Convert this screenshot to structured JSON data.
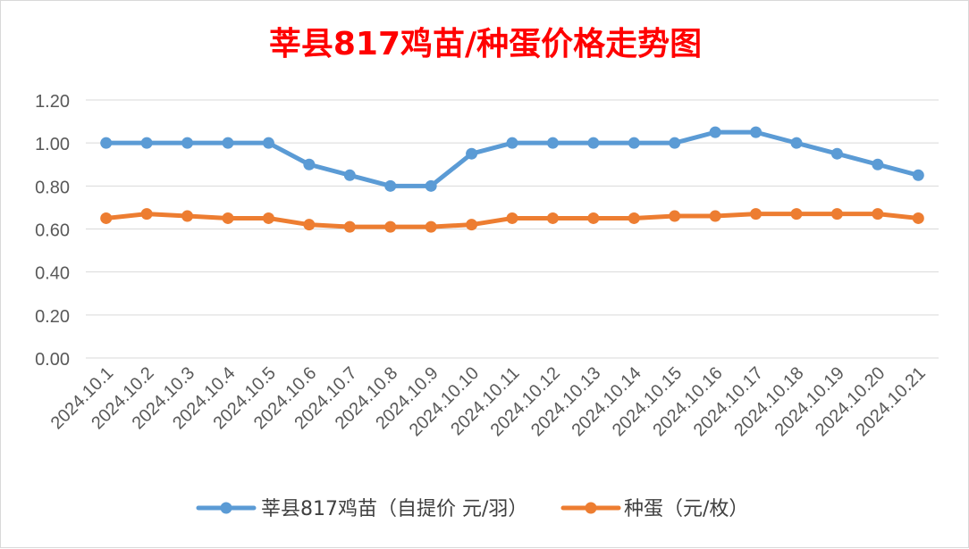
{
  "chart_data": {
    "type": "line",
    "title": "莘县817鸡苗/种蛋价格走势图",
    "xlabel": "",
    "ylabel": "",
    "ylim": [
      0,
      1.2
    ],
    "y_ticks": [
      "0.00",
      "0.20",
      "0.40",
      "0.60",
      "0.80",
      "1.00",
      "1.20"
    ],
    "grid": true,
    "legend_position": "bottom",
    "categories": [
      "2024.10.1",
      "2024.10.2",
      "2024.10.3",
      "2024.10.4",
      "2024.10.5",
      "2024.10.6",
      "2024.10.7",
      "2024.10.8",
      "2024.10.9",
      "2024.10.10",
      "2024.10.11",
      "2024.10.12",
      "2024.10.13",
      "2024.10.14",
      "2024.10.15",
      "2024.10.16",
      "2024.10.17",
      "2024.10.18",
      "2024.10.19",
      "2024.10.20",
      "2024.10.21"
    ],
    "series": [
      {
        "name": "莘县817鸡苗（自提价 元/羽）",
        "color": "#5b9bd5",
        "values": [
          1.0,
          1.0,
          1.0,
          1.0,
          1.0,
          0.9,
          0.85,
          0.8,
          0.8,
          0.95,
          1.0,
          1.0,
          1.0,
          1.0,
          1.0,
          1.05,
          1.05,
          1.0,
          0.95,
          0.9,
          0.85
        ]
      },
      {
        "name": "种蛋（元/枚）",
        "color": "#ed7d31",
        "values": [
          0.65,
          0.67,
          0.66,
          0.65,
          0.65,
          0.62,
          0.61,
          0.61,
          0.61,
          0.62,
          0.65,
          0.65,
          0.65,
          0.65,
          0.66,
          0.66,
          0.67,
          0.67,
          0.67,
          0.67,
          0.65
        ]
      }
    ]
  }
}
